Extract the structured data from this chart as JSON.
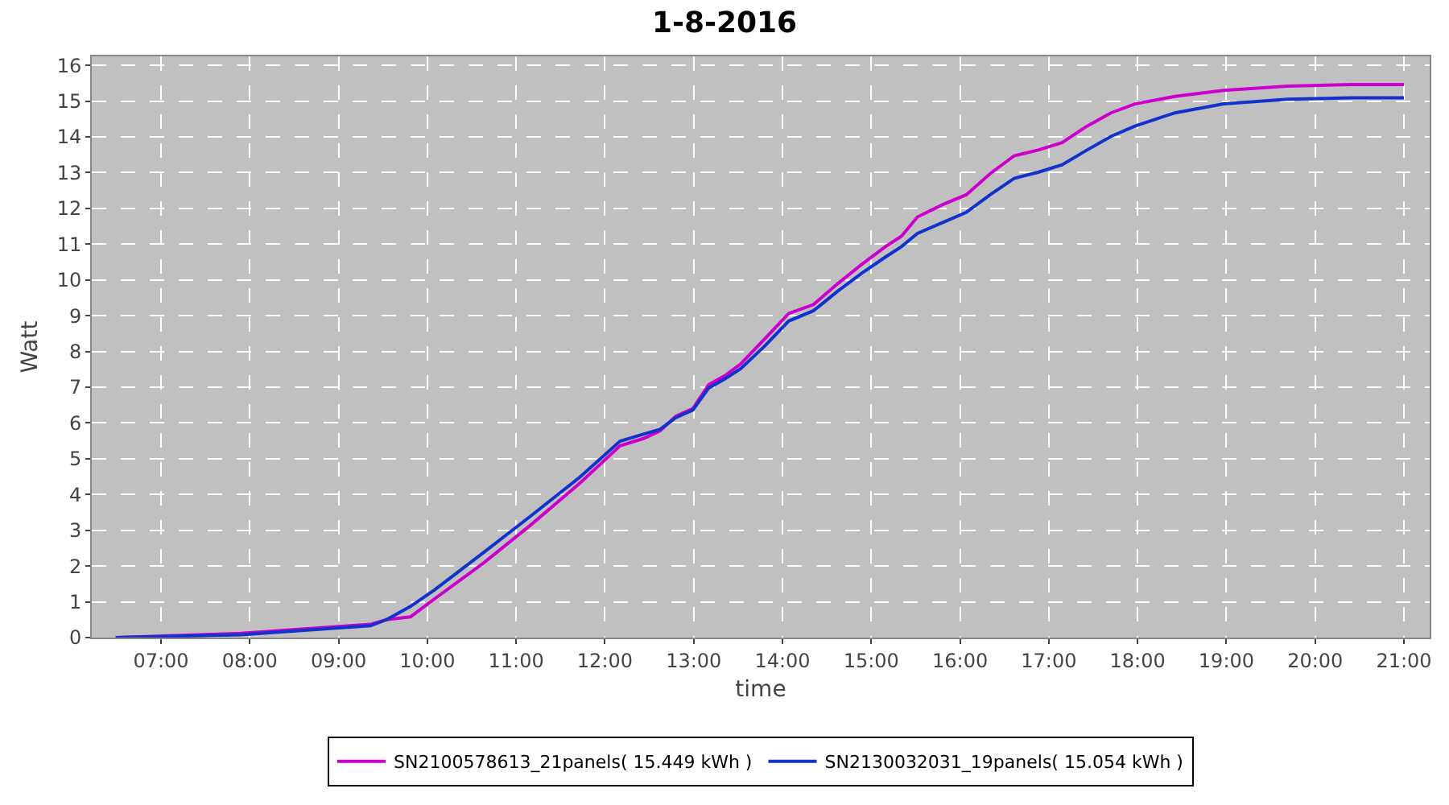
{
  "chart_data": {
    "type": "line",
    "title": "1-8-2016",
    "xlabel": "time",
    "ylabel": "Watt",
    "xlim": [
      6.22,
      21.29
    ],
    "xticks": [
      {
        "value": 7,
        "label": "07:00"
      },
      {
        "value": 8,
        "label": "08:00"
      },
      {
        "value": 9,
        "label": "09:00"
      },
      {
        "value": 10,
        "label": "10:00"
      },
      {
        "value": 11,
        "label": "11:00"
      },
      {
        "value": 12,
        "label": "12:00"
      },
      {
        "value": 13,
        "label": "13:00"
      },
      {
        "value": 14,
        "label": "14:00"
      },
      {
        "value": 15,
        "label": "15:00"
      },
      {
        "value": 16,
        "label": "16:00"
      },
      {
        "value": 17,
        "label": "17:00"
      },
      {
        "value": 18,
        "label": "18:00"
      },
      {
        "value": 19,
        "label": "19:00"
      },
      {
        "value": 20,
        "label": "20:00"
      },
      {
        "value": 21,
        "label": "21:00"
      }
    ],
    "ylim": [
      0,
      16.25
    ],
    "yticks": [
      0,
      1,
      2,
      3,
      4,
      5,
      6,
      7,
      8,
      9,
      10,
      11,
      12,
      13,
      14,
      15,
      16
    ],
    "x": [
      6.49,
      7.9,
      9.36,
      9.54,
      9.81,
      10.08,
      10.63,
      11.17,
      11.72,
      12.17,
      12.44,
      12.62,
      12.8,
      12.99,
      13.17,
      13.35,
      13.53,
      13.8,
      14.07,
      14.35,
      14.62,
      14.89,
      15.16,
      15.34,
      15.52,
      15.8,
      16.07,
      16.34,
      16.61,
      16.88,
      17.15,
      17.43,
      17.7,
      17.97,
      18.42,
      18.97,
      19.69,
      20.42,
      21
    ],
    "series": [
      {
        "name": "SN2100578613_21panels( 15.449 kWh )",
        "color": "#cc00cc",
        "values": [
          0,
          0.12,
          0.37,
          0.5,
          0.58,
          1.08,
          2.08,
          3.16,
          4.32,
          5.36,
          5.57,
          5.78,
          6.19,
          6.4,
          7.07,
          7.32,
          7.65,
          8.35,
          9.06,
          9.31,
          9.89,
          10.43,
          10.93,
          11.22,
          11.76,
          12.1,
          12.38,
          12.97,
          13.47,
          13.63,
          13.84,
          14.3,
          14.67,
          14.92,
          15.13,
          15.3,
          15.42,
          15.46,
          15.46
        ]
      },
      {
        "name": "SN2130032031_19panels( 15.054 kWh )",
        "color": "#1133cc",
        "values": [
          0,
          0.08,
          0.33,
          0.5,
          0.87,
          1.33,
          2.37,
          3.41,
          4.49,
          5.49,
          5.69,
          5.82,
          6.15,
          6.36,
          6.98,
          7.23,
          7.52,
          8.15,
          8.85,
          9.14,
          9.68,
          10.18,
          10.64,
          10.93,
          11.3,
          11.6,
          11.89,
          12.38,
          12.84,
          13.01,
          13.22,
          13.63,
          14.01,
          14.3,
          14.67,
          14.92,
          15.05,
          15.09,
          15.09
        ]
      }
    ],
    "grid": true,
    "legend": "bottom",
    "marker": "none",
    "line_style": "solid"
  }
}
